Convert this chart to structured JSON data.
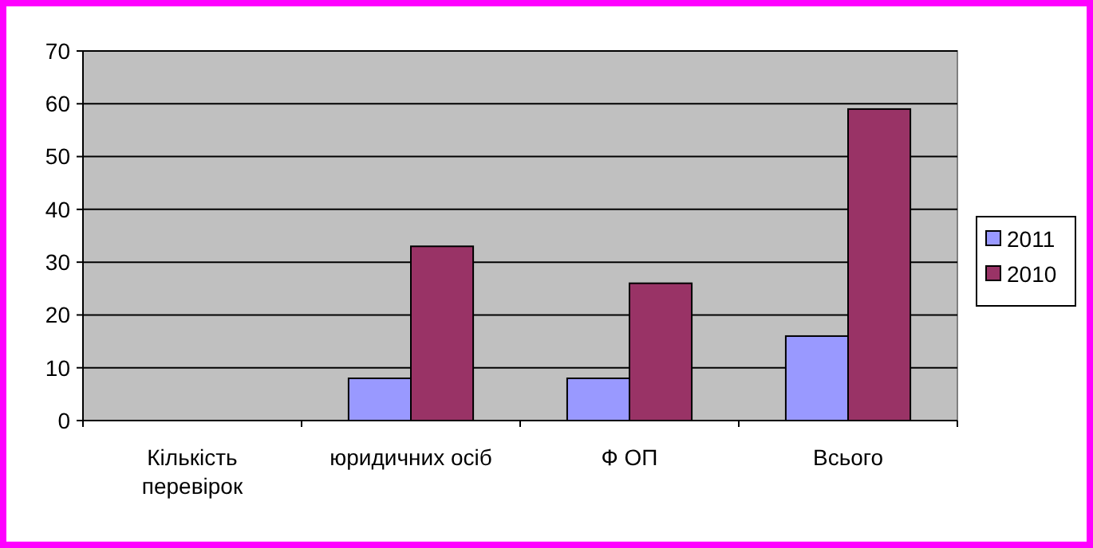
{
  "chart_data": {
    "type": "bar",
    "categories": [
      "Кількість перевірок",
      "юридичних осіб",
      "Ф ОП",
      "Всього"
    ],
    "series": [
      {
        "name": "2011",
        "color": "#9999ff",
        "values": [
          null,
          8,
          8,
          16
        ]
      },
      {
        "name": "2010",
        "color": "#993366",
        "values": [
          null,
          33,
          26,
          59
        ]
      }
    ],
    "ylim": [
      0,
      70
    ],
    "yticks": [
      0,
      10,
      20,
      30,
      40,
      50,
      60,
      70
    ],
    "grid": "y",
    "legend": "right"
  }
}
